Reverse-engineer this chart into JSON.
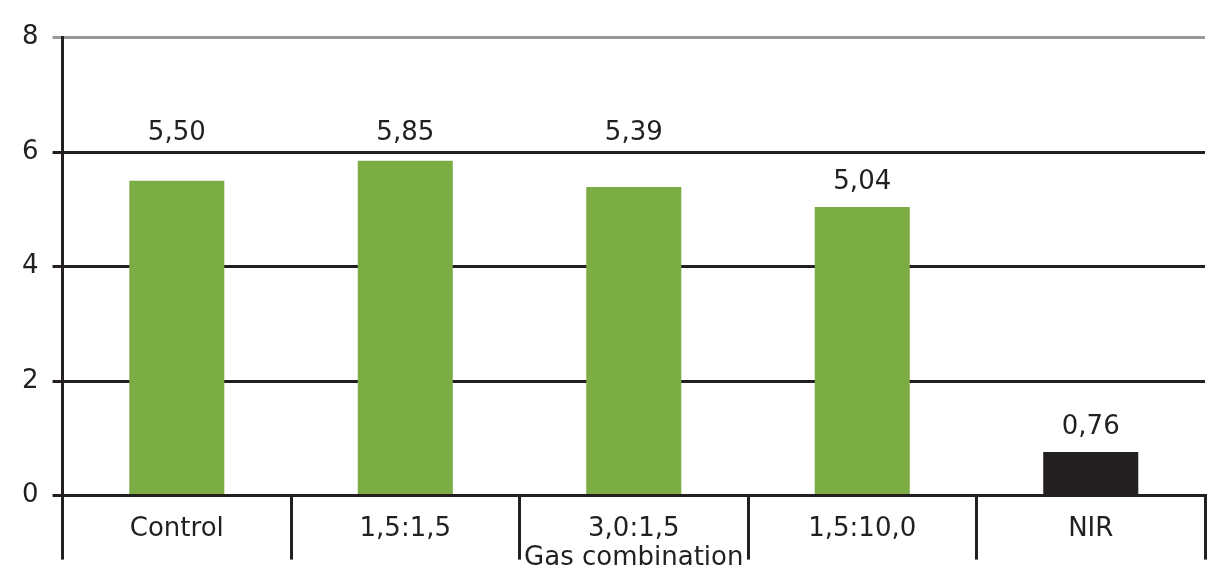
{
  "chart_data": {
    "type": "bar",
    "xlabel": "Gas combination",
    "categories": [
      "Control",
      "1,5:1,5",
      "3,0:1,5",
      "1,5:10,0",
      "NIR"
    ],
    "values": [
      5.5,
      5.85,
      5.39,
      5.04,
      0.76
    ],
    "colors": [
      "#7cad45",
      "#7cad45",
      "#7cad45",
      "#7cad45",
      "#231f20"
    ],
    "value_labels": [
      "5,50",
      "5,85",
      "5,39",
      "5,04",
      "0,76"
    ],
    "ylim": [
      0,
      8
    ],
    "yticks": [
      0,
      2,
      4,
      6,
      8
    ],
    "grid": "y"
  }
}
